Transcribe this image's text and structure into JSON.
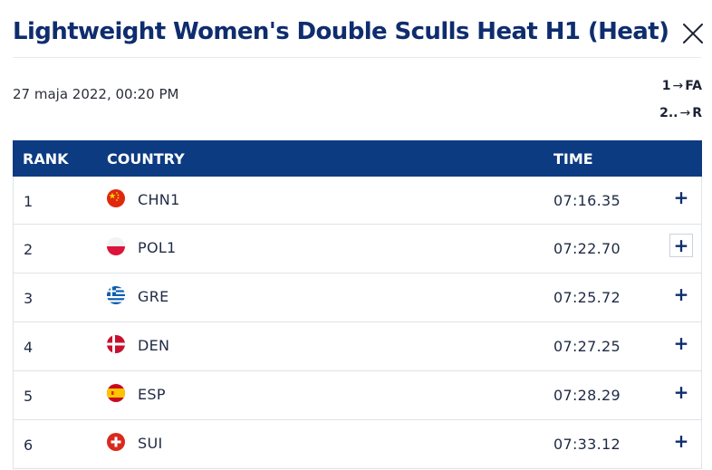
{
  "header": {
    "title": "Lightweight Women's Double Sculls Heat H1 (Heat)",
    "close_icon": "close-icon"
  },
  "meta": {
    "date": "27 maja 2022, 00:20 PM",
    "progression": [
      {
        "from": "1",
        "to": "FA"
      },
      {
        "from": "2..",
        "to": "R"
      }
    ]
  },
  "table": {
    "columns": [
      "RANK",
      "COUNTRY",
      "TIME"
    ],
    "rows": [
      {
        "rank": "1",
        "country": "CHN1",
        "time": "07:16.35",
        "flag": "china-flag-icon"
      },
      {
        "rank": "2",
        "country": "POL1",
        "time": "07:22.70",
        "flag": "poland-flag-icon"
      },
      {
        "rank": "3",
        "country": "GRE",
        "time": "07:25.72",
        "flag": "greece-flag-icon"
      },
      {
        "rank": "4",
        "country": "DEN",
        "time": "07:27.25",
        "flag": "denmark-flag-icon"
      },
      {
        "rank": "5",
        "country": "ESP",
        "time": "07:28.29",
        "flag": "spain-flag-icon"
      },
      {
        "rank": "6",
        "country": "SUI",
        "time": "07:33.12",
        "flag": "switzerland-flag-icon"
      }
    ],
    "expand_label": "+"
  },
  "colors": {
    "header_bg": "#0c3b82",
    "title": "#0f2d6e"
  }
}
